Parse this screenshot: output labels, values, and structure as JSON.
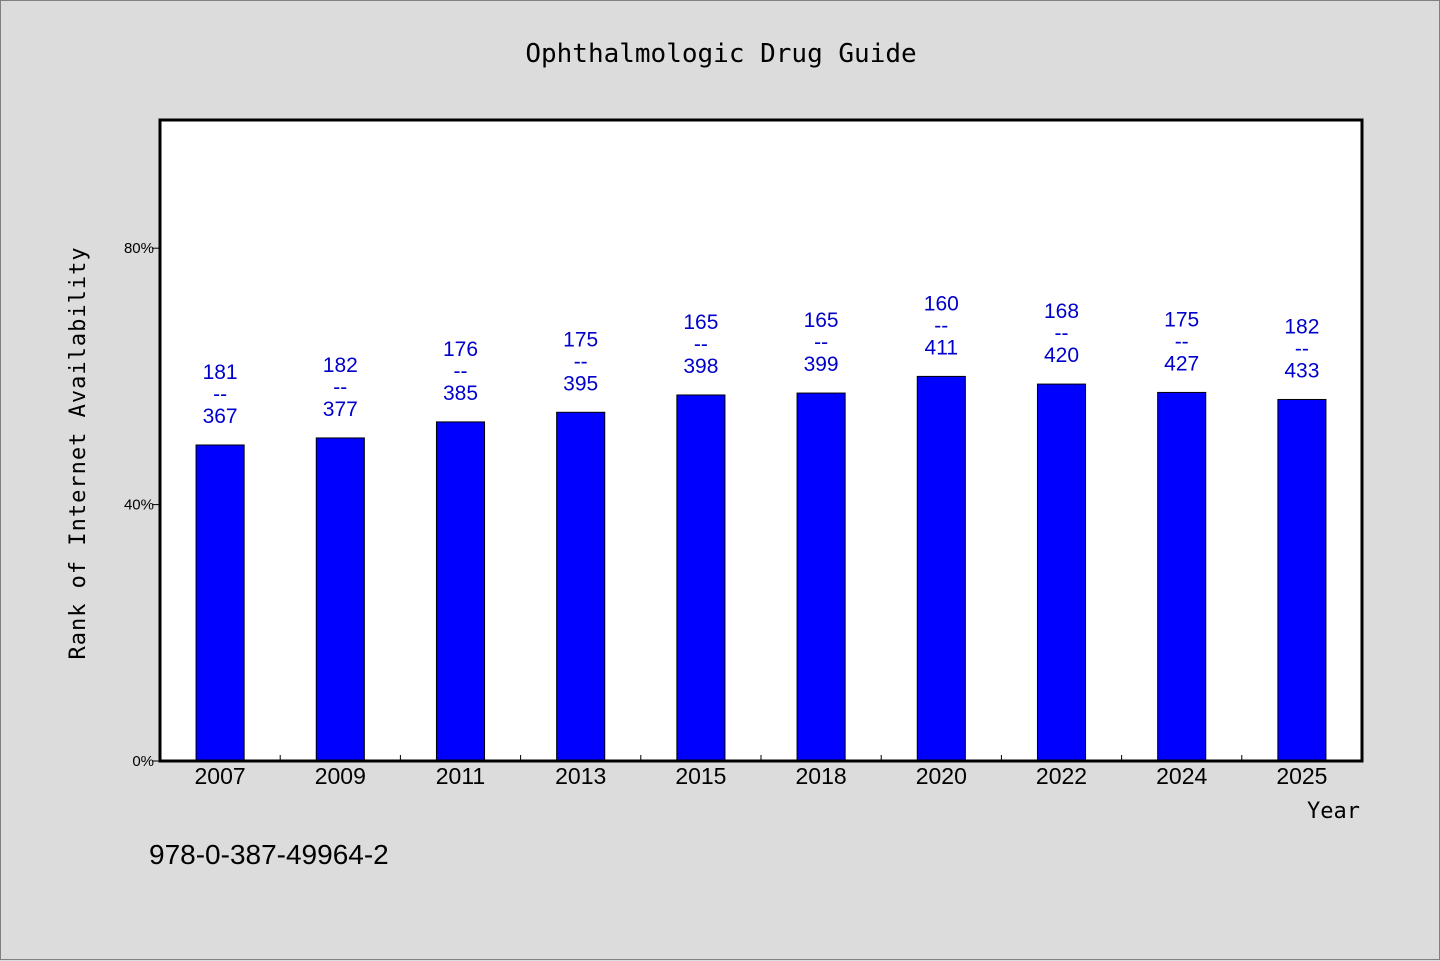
{
  "chart_data": {
    "type": "bar",
    "title": "Ophthalmologic Drug Guide",
    "xlabel": "Year",
    "ylabel": "Rank of Internet Availability",
    "categories": [
      "2007",
      "2009",
      "2011",
      "2013",
      "2015",
      "2018",
      "2020",
      "2022",
      "2024",
      "2025"
    ],
    "values": [
      49.3,
      50.4,
      52.9,
      54.4,
      57.1,
      57.4,
      60.0,
      58.8,
      57.5,
      56.4
    ],
    "data_labels": [
      [
        "181",
        "--",
        "367"
      ],
      [
        "182",
        "--",
        "377"
      ],
      [
        "176",
        "--",
        "385"
      ],
      [
        "175",
        "--",
        "395"
      ],
      [
        "165",
        "--",
        "398"
      ],
      [
        "165",
        "--",
        "399"
      ],
      [
        "160",
        "--",
        "411"
      ],
      [
        "168",
        "--",
        "420"
      ],
      [
        "175",
        "--",
        "427"
      ],
      [
        "182",
        "--",
        "433"
      ]
    ],
    "yticks": [
      0,
      40,
      80
    ],
    "ytick_labels": [
      "0%",
      "40%",
      "80%"
    ],
    "ylim": [
      0,
      100
    ],
    "grid": false,
    "legend": "none",
    "bar_color": "#0000ff",
    "label_color": "#0000cc"
  },
  "footnote": "978-0-387-49964-2"
}
